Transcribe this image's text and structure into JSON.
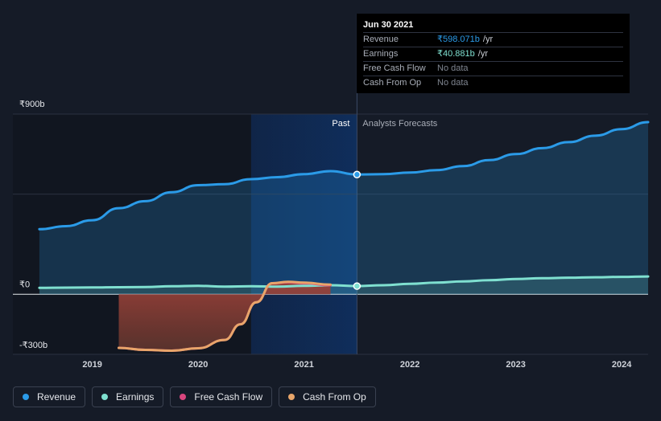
{
  "chart_data": {
    "type": "area",
    "y_labels": [
      "₹900b",
      "₹0",
      "-₹300b"
    ],
    "y_label_values": [
      900,
      0,
      -300
    ],
    "ylim": [
      -300,
      900
    ],
    "y_gridlines": [
      900,
      500,
      0,
      -300
    ],
    "x_ticks": [
      "2019",
      "2020",
      "2021",
      "2022",
      "2023",
      "2024"
    ],
    "x_tick_values": [
      2019.0,
      2020.0,
      2021.0,
      2022.0,
      2023.0,
      2024.0
    ],
    "xlim": [
      2018.25,
      2024.25
    ],
    "past_label": "Past",
    "forecast_label": "Analysts Forecasts",
    "divider_x": 2021.5,
    "highlight_start": 2020.5,
    "grid": true,
    "series": [
      {
        "name": "Revenue",
        "color": "#2b9be8",
        "x": [
          2018.5,
          2018.75,
          2019.0,
          2019.25,
          2019.5,
          2019.75,
          2020.0,
          2020.25,
          2020.5,
          2020.75,
          2021.0,
          2021.25,
          2021.5,
          2021.75,
          2022.0,
          2022.25,
          2022.5,
          2022.75,
          2023.0,
          2023.25,
          2023.5,
          2023.75,
          2024.0,
          2024.25
        ],
        "y": [
          325,
          340,
          370,
          430,
          465,
          510,
          545,
          550,
          575,
          585,
          600,
          615,
          598,
          600,
          608,
          620,
          640,
          670,
          700,
          730,
          760,
          792,
          825,
          860
        ]
      },
      {
        "name": "Earnings",
        "color": "#7fe0d0",
        "x": [
          2018.5,
          2018.75,
          2019.0,
          2019.25,
          2019.5,
          2019.75,
          2020.0,
          2020.25,
          2020.5,
          2020.75,
          2021.0,
          2021.25,
          2021.5,
          2021.75,
          2022.0,
          2022.25,
          2022.5,
          2022.75,
          2023.0,
          2023.25,
          2023.5,
          2023.75,
          2024.0,
          2024.25
        ],
        "y": [
          32,
          33,
          34,
          35,
          36,
          40,
          42,
          38,
          40,
          38,
          42,
          45,
          40.881,
          45,
          52,
          58,
          64,
          70,
          76,
          80,
          83,
          85,
          87,
          89
        ]
      },
      {
        "name": "Free Cash Flow",
        "color": "#d9467e",
        "x": [
          2019.25,
          2019.5,
          2019.75,
          2020.0,
          2020.25,
          2020.4,
          2020.55,
          2020.7,
          2020.85,
          2021.0,
          2021.25
        ],
        "y": [
          -268,
          -278,
          -282,
          -270,
          -228,
          -150,
          -40,
          55,
          60,
          55,
          45
        ]
      },
      {
        "name": "Cash From Op",
        "color": "#e8a56a",
        "x": [
          2019.25,
          2019.5,
          2019.75,
          2020.0,
          2020.25,
          2020.4,
          2020.55,
          2020.7,
          2020.85,
          2021.0,
          2021.25
        ],
        "y": [
          -268,
          -278,
          -282,
          -270,
          -228,
          -150,
          -40,
          55,
          62,
          58,
          48
        ]
      }
    ]
  },
  "tooltip": {
    "date": "Jun 30 2021",
    "rows": [
      {
        "label": "Revenue",
        "value": "₹598.071b",
        "unit": "/yr"
      },
      {
        "label": "Earnings",
        "value": "₹40.881b",
        "unit": "/yr"
      },
      {
        "label": "Free Cash Flow",
        "value": "No data"
      },
      {
        "label": "Cash From Op",
        "value": "No data"
      }
    ]
  },
  "legend": [
    {
      "label": "Revenue",
      "color": "#2b9be8"
    },
    {
      "label": "Earnings",
      "color": "#7fe0d0"
    },
    {
      "label": "Free Cash Flow",
      "color": "#d9467e"
    },
    {
      "label": "Cash From Op",
      "color": "#e8a56a"
    }
  ]
}
